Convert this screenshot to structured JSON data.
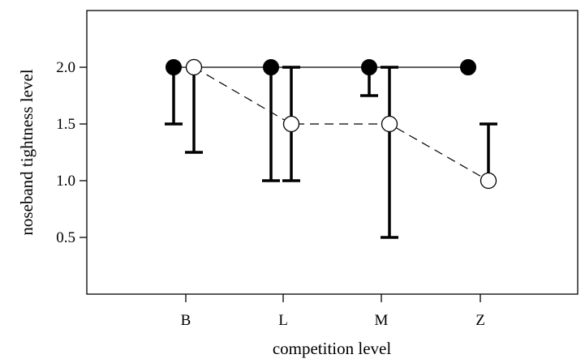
{
  "chart_data": {
    "type": "scatter",
    "xlabel": "competition level",
    "ylabel": "noseband tightness level",
    "categories": [
      "B",
      "L",
      "M",
      "Z"
    ],
    "yticks": [
      0.5,
      1.0,
      1.5,
      2.0
    ],
    "ytick_labels": [
      "0.5",
      "1.0",
      "1.5",
      "2.0"
    ],
    "ylim": [
      0.0,
      2.5
    ],
    "grid": false,
    "series": [
      {
        "marker": "filled-circle",
        "line": "solid",
        "values": [
          2.0,
          2.0,
          2.0,
          2.0
        ],
        "error_low": [
          1.5,
          1.0,
          1.75,
          null
        ],
        "error_high": [
          2.0,
          2.0,
          2.0,
          null
        ]
      },
      {
        "marker": "open-circle",
        "line": "dashed",
        "values": [
          2.0,
          1.5,
          1.5,
          1.0
        ],
        "error_low": [
          1.25,
          1.0,
          0.5,
          1.0
        ],
        "error_high": [
          2.0,
          2.0,
          2.0,
          1.5
        ]
      }
    ],
    "colors": {
      "axis": "#000000",
      "series_fill": "#000000",
      "open_fill": "#ffffff"
    }
  }
}
